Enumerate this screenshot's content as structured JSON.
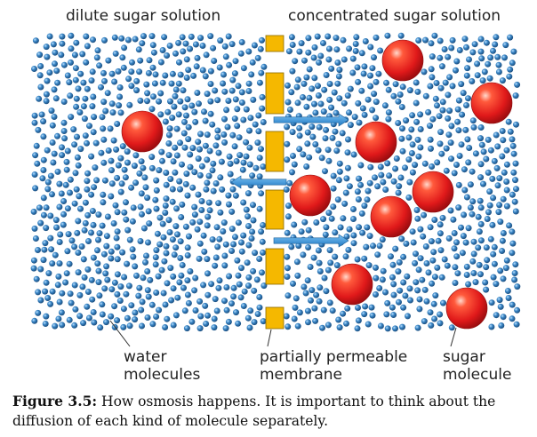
{
  "labels": {
    "left_region": "dilute sugar solution",
    "right_region": "concentrated sugar solution",
    "water_line1": "water",
    "water_line2": "molecules",
    "membrane_line1": "partially permeable",
    "membrane_line2": "membrane",
    "sugar_line1": "sugar",
    "sugar_line2": "molecule"
  },
  "caption": {
    "prefix": "Figure 3.5:",
    "text": " How osmosis happens. It is important to think about the diffusion of each kind of molecule separately."
  },
  "colors": {
    "water": "#3a86c6",
    "sugar": "#e8231c",
    "membrane": "#f5b800",
    "arrow": "#2f8fd8"
  }
}
